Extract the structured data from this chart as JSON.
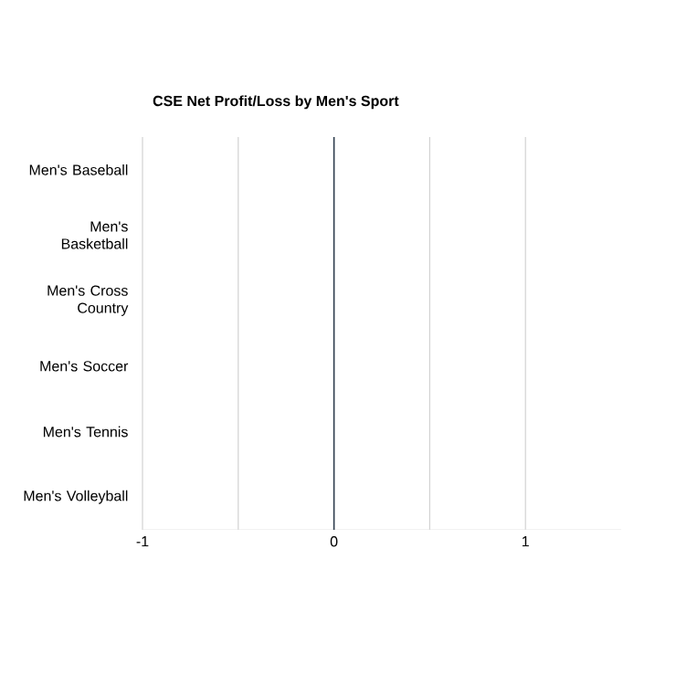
{
  "chart_data": {
    "type": "bar",
    "orientation": "horizontal",
    "title": "CSE Net Profit/Loss by Men's Sport",
    "categories": [
      "Men's Baseball",
      "Men's Basketball",
      "Men's Cross Country",
      "Men's Soccer",
      "Men's Tennis",
      "Men's Volleyball"
    ],
    "values": [
      0,
      0,
      0,
      0,
      0,
      0
    ],
    "xlim": [
      -1,
      1.5
    ],
    "xticks": [
      -1,
      {
        "value": -0.5,
        "label": null
      },
      0,
      {
        "value": 0.5,
        "label": null
      },
      1
    ],
    "grid": "x",
    "ref_lines": [
      {
        "axis": "x",
        "value": 0,
        "color": "#2f3e4e"
      }
    ]
  }
}
